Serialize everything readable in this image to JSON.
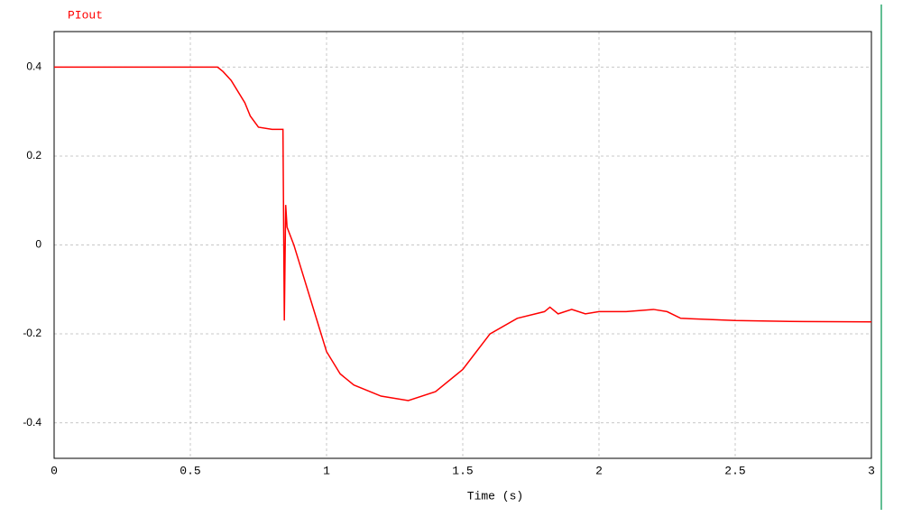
{
  "chart_data": {
    "type": "line",
    "xlabel": "Time (s)",
    "series": [
      {
        "name": "PIout",
        "color": "#ff0000",
        "x": [
          0,
          0.6,
          0.62,
          0.65,
          0.7,
          0.72,
          0.75,
          0.8,
          0.84,
          0.845,
          0.85,
          0.855,
          0.88,
          0.9,
          0.95,
          1.0,
          1.05,
          1.1,
          1.2,
          1.3,
          1.4,
          1.5,
          1.55,
          1.6,
          1.7,
          1.8,
          1.82,
          1.85,
          1.9,
          1.95,
          2.0,
          2.1,
          2.2,
          2.25,
          2.3,
          2.5,
          2.7,
          3.0
        ],
        "values": [
          0.4,
          0.4,
          0.39,
          0.37,
          0.32,
          0.29,
          0.265,
          0.26,
          0.26,
          -0.17,
          0.09,
          0.04,
          0.0,
          -0.04,
          -0.14,
          -0.24,
          -0.29,
          -0.315,
          -0.34,
          -0.35,
          -0.33,
          -0.28,
          -0.24,
          -0.2,
          -0.165,
          -0.15,
          -0.14,
          -0.155,
          -0.145,
          -0.155,
          -0.15,
          -0.15,
          -0.145,
          -0.15,
          -0.165,
          -0.17,
          -0.172,
          -0.173
        ]
      }
    ],
    "xlim": [
      0,
      3
    ],
    "xticks": [
      0,
      0.5,
      1,
      1.5,
      2,
      2.5,
      3
    ],
    "ylim": [
      -0.48,
      0.48
    ],
    "yticks": [
      -0.4,
      -0.2,
      0,
      0.2,
      0.4
    ],
    "grid": true
  }
}
